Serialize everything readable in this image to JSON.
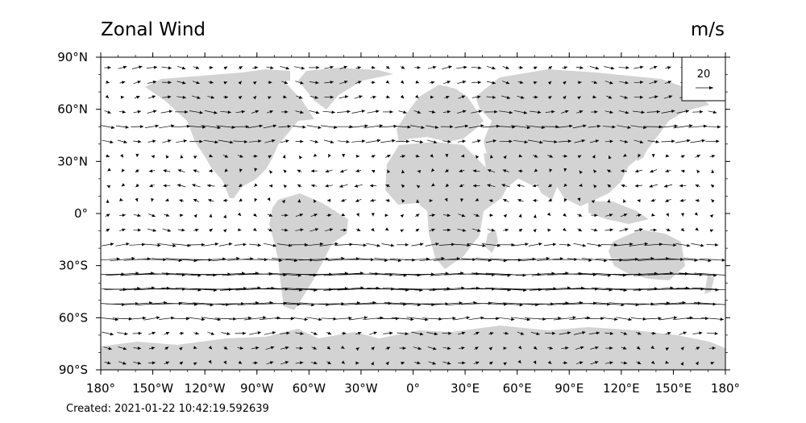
{
  "title": "Zonal Wind",
  "units": "m/s",
  "footer": "Created: 2021-01-22 10:42:19.592639",
  "map": {
    "projection": "equirectangular",
    "land_color": "#d3d3d3",
    "x_ticks": [
      "180°",
      "150°W",
      "120°W",
      "90°W",
      "60°W",
      "30°W",
      "0°",
      "30°E",
      "60°E",
      "90°E",
      "120°E",
      "150°E",
      "180°"
    ],
    "y_ticks": [
      "90°N",
      "60°N",
      "30°N",
      "0°",
      "30°S",
      "60°S",
      "90°S"
    ],
    "x_range": [
      -180,
      180
    ],
    "y_range": [
      -90,
      90
    ]
  },
  "legend": {
    "reference_value": "20",
    "placement": "top-right"
  },
  "wind_field": {
    "lon_spacing_deg": 8.5,
    "lat_spacing_deg": 8.5,
    "zonal_profile_ms": [
      {
        "lat": 80,
        "u": 8
      },
      {
        "lat": 70,
        "u": 5
      },
      {
        "lat": 60,
        "u": 10
      },
      {
        "lat": 50,
        "u": 18
      },
      {
        "lat": 40,
        "u": 12
      },
      {
        "lat": 30,
        "u": -2
      },
      {
        "lat": 20,
        "u": -6
      },
      {
        "lat": 10,
        "u": -5
      },
      {
        "lat": 0,
        "u": 4
      },
      {
        "lat": -10,
        "u": 6
      },
      {
        "lat": -20,
        "u": 20
      },
      {
        "lat": -30,
        "u": 38
      },
      {
        "lat": -40,
        "u": 45
      },
      {
        "lat": -50,
        "u": 42
      },
      {
        "lat": -60,
        "u": 22
      },
      {
        "lat": -70,
        "u": 8
      },
      {
        "lat": -80,
        "u": 5
      }
    ]
  }
}
